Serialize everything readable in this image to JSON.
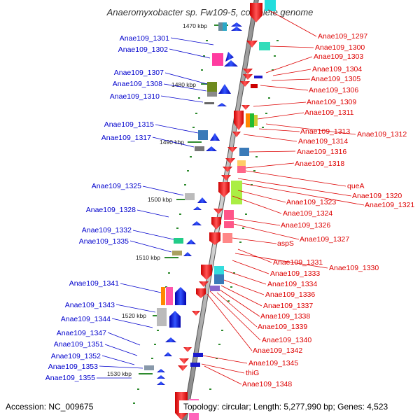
{
  "title": "Anaeromyxobacter sp. Fw109-5, complete genome",
  "footer": {
    "accession": "Accession: NC_009675",
    "summary": "Topology: circular; Length: 5,277,990 bp; Genes: 4,523"
  },
  "colors": {
    "left_label": "#0000cc",
    "right_label": "#dd0000",
    "backbone": "#808080",
    "tick": "#228b22"
  },
  "kbp_ticks": [
    "1470 kbp",
    "1480 kbp",
    "1490 kbp",
    "1500 kbp",
    "1510 kbp",
    "1520 kbp",
    "1530 kbp"
  ],
  "left_genes": [
    "Anae109_1301",
    "Anae109_1302",
    "Anae109_1307",
    "Anae109_1308",
    "Anae109_1310",
    "Anae109_1315",
    "Anae109_1317",
    "Anae109_1325",
    "Anae109_1328",
    "Anae109_1332",
    "Anae109_1335",
    "Anae109_1341",
    "Anae109_1343",
    "Anae109_1344",
    "Anae109_1347",
    "Anae109_1351",
    "Anae109_1352",
    "Anae109_1353",
    "Anae109_1355"
  ],
  "right_genes": [
    "Anae109_1297",
    "Anae109_1300",
    "Anae109_1303",
    "Anae109_1304",
    "Anae109_1305",
    "Anae109_1306",
    "Anae109_1309",
    "Anae109_1311",
    "Anae109_1313",
    "Anae109_1312",
    "Anae109_1314",
    "Anae109_1316",
    "Anae109_1318",
    "queA",
    "Anae109_1320",
    "Anae109_1321",
    "Anae109_1323",
    "Anae109_1324",
    "Anae109_1326",
    "Anae109_1327",
    "aspS",
    "Anae109_1331",
    "Anae109_1330",
    "Anae109_1333",
    "Anae109_1334",
    "Anae109_1336",
    "Anae109_1337",
    "Anae109_1338",
    "Anae109_1339",
    "Anae109_1340",
    "Anae109_1342",
    "Anae109_1345",
    "thiG",
    "Anae109_1348"
  ]
}
